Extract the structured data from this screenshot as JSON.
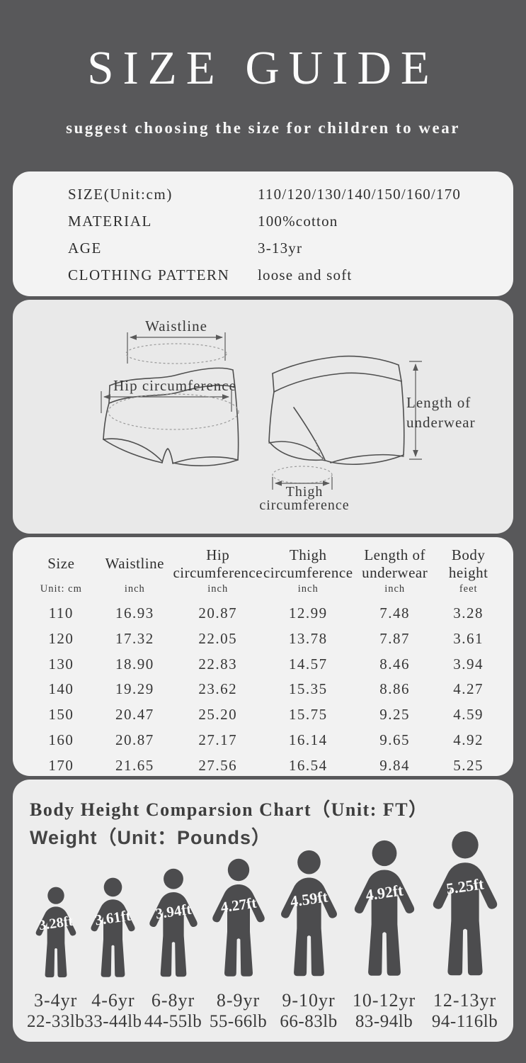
{
  "page": {
    "title": "SIZE GUIDE",
    "subtitle": "suggest choosing the size for children to wear"
  },
  "colors": {
    "bg": "#58585a",
    "card_light": "#f3f3f3",
    "card_gray": "#e9e9e9",
    "card_table": "#f2f2f2",
    "card_chart": "#ededed",
    "figure": "#4c4c4e"
  },
  "info_card": {
    "rows": [
      {
        "label": "SIZE(Unit:cm)",
        "value": "110/120/130/140/150/160/170"
      },
      {
        "label": "MATERIAL",
        "value": "100%cotton"
      },
      {
        "label": "AGE",
        "value": "3-13yr"
      },
      {
        "label": "CLOTHING PATTERN",
        "value": "loose and soft"
      }
    ]
  },
  "diagram": {
    "waistline_label": "Waistline",
    "hip_label": "Hip circumference",
    "length_label_line1": "Length of",
    "length_label_line2": "underwear",
    "thigh_label_line1": "Thigh",
    "thigh_label_line2": "circumference"
  },
  "size_table": {
    "columns": [
      {
        "name": "Size",
        "unit": "Unit: cm"
      },
      {
        "name": "Waistline",
        "unit": "inch"
      },
      {
        "name": "Hip circumference",
        "unit": "inch"
      },
      {
        "name": "Thigh circumference",
        "unit": "inch"
      },
      {
        "name": "Length of underwear",
        "unit": "inch"
      },
      {
        "name": "Body height",
        "unit": "feet"
      }
    ],
    "rows": [
      [
        "110",
        "16.93",
        "20.87",
        "12.99",
        "7.48",
        "3.28"
      ],
      [
        "120",
        "17.32",
        "22.05",
        "13.78",
        "7.87",
        "3.61"
      ],
      [
        "130",
        "18.90",
        "22.83",
        "14.57",
        "8.46",
        "3.94"
      ],
      [
        "140",
        "19.29",
        "23.62",
        "15.35",
        "8.86",
        "4.27"
      ],
      [
        "150",
        "20.47",
        "25.20",
        "15.75",
        "9.25",
        "4.59"
      ],
      [
        "160",
        "20.87",
        "27.17",
        "16.14",
        "9.65",
        "4.92"
      ],
      [
        "170",
        "21.65",
        "27.56",
        "16.54",
        "9.84",
        "5.25"
      ]
    ]
  },
  "chart_data": {
    "type": "pictogram",
    "title_line1": "Body Height Comparsion Chart（Unit: FT）",
    "title_line2": "Weight（Unit：Pounds）",
    "height_unit": "ft",
    "weight_unit": "lb",
    "figures": [
      {
        "height_label": "3.28ft",
        "height_ft": 3.28,
        "age": "3-4yr",
        "weight": "22-33lb"
      },
      {
        "height_label": "3.61ft",
        "height_ft": 3.61,
        "age": "4-6yr",
        "weight": "33-44lb"
      },
      {
        "height_label": "3.94ft",
        "height_ft": 3.94,
        "age": "6-8yr",
        "weight": "44-55lb"
      },
      {
        "height_label": "4.27ft",
        "height_ft": 4.27,
        "age": "8-9yr",
        "weight": "55-66lb"
      },
      {
        "height_label": "4.59ft",
        "height_ft": 4.59,
        "age": "9-10yr",
        "weight": "66-83lb"
      },
      {
        "height_label": "4.92ft",
        "height_ft": 4.92,
        "age": "10-12yr",
        "weight": "83-94lb"
      },
      {
        "height_label": "5.25ft",
        "height_ft": 5.25,
        "age": "12-13yr",
        "weight": "94-116lb"
      }
    ]
  }
}
